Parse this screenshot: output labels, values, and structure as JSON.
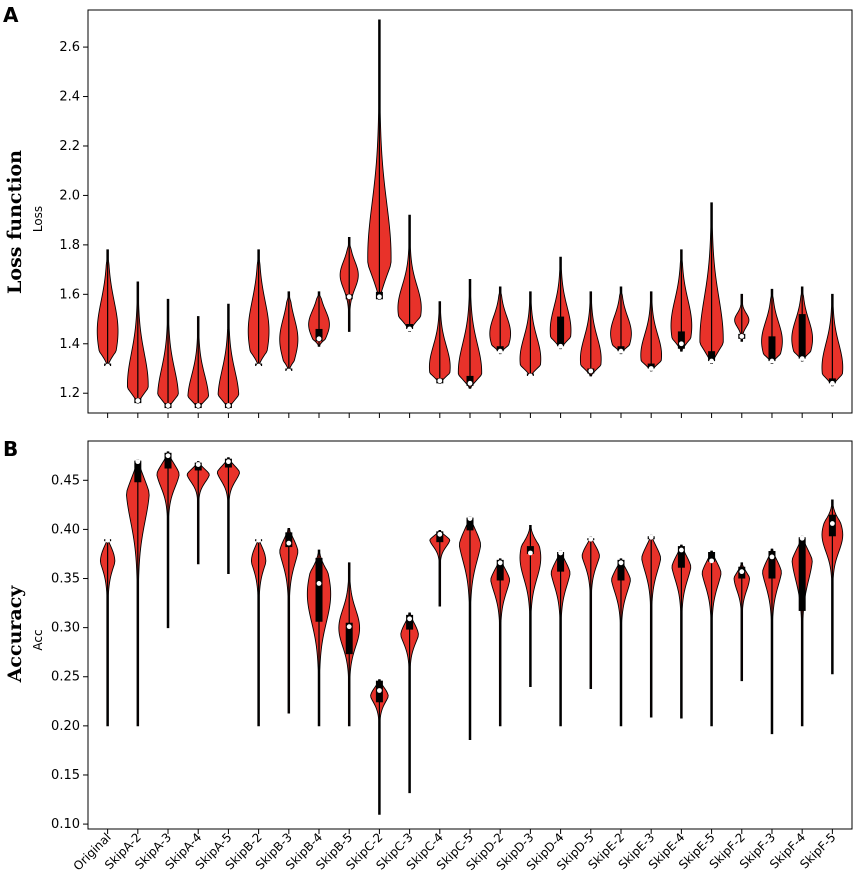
{
  "categories": [
    "Original",
    "SkipA-2",
    "SkipA-3",
    "SkipA-4",
    "SkipA-5",
    "SkipB-2",
    "SkipB-3",
    "SkipB-4",
    "SkipB-5",
    "SkipC-2",
    "SkipC-3",
    "SkipC-4",
    "SkipC-5",
    "SkipD-2",
    "SkipD-3",
    "SkipD-4",
    "SkipD-5",
    "SkipE-2",
    "SkipE-3",
    "SkipE-4",
    "SkipE-5",
    "SkipF-2",
    "SkipF-3",
    "SkipF-4",
    "SkipF-5"
  ],
  "colors": {
    "violin_fill": "#e8322a",
    "violin_edge": "#000000",
    "median": "#ffffff",
    "box": "#000000"
  },
  "chart_data": [
    {
      "type": "violin",
      "panel_letter": "A",
      "title": "Loss function",
      "ylabel": "Loss",
      "ylim": [
        1.12,
        2.75
      ],
      "yticks": [
        1.2,
        1.4,
        1.6,
        1.8,
        2.0,
        2.2,
        2.4,
        2.6
      ],
      "ytick_labels": [
        "1.2",
        "1.4",
        "1.6",
        "1.8",
        "2.0",
        "2.2",
        "2.4",
        "2.6"
      ],
      "series": [
        {
          "min": 1.31,
          "max": 1.78,
          "q1": 1.31,
          "median": 1.31,
          "q3": 1.32,
          "widthScale": 0.8,
          "peak": 0.3,
          "spread": 0.8
        },
        {
          "min": 1.16,
          "max": 1.65,
          "q1": 1.16,
          "median": 1.17,
          "q3": 1.18,
          "widthScale": 0.8,
          "peak": 0.15,
          "spread": 0.8
        },
        {
          "min": 1.14,
          "max": 1.58,
          "q1": 1.14,
          "median": 1.15,
          "q3": 1.16,
          "widthScale": 0.8,
          "peak": 0.1,
          "spread": 0.8
        },
        {
          "min": 1.14,
          "max": 1.51,
          "q1": 1.14,
          "median": 1.15,
          "q3": 1.16,
          "widthScale": 0.8,
          "peak": 0.1,
          "spread": 0.8
        },
        {
          "min": 1.14,
          "max": 1.56,
          "q1": 1.14,
          "median": 1.15,
          "q3": 1.16,
          "widthScale": 0.8,
          "peak": 0.1,
          "spread": 0.8
        },
        {
          "min": 1.31,
          "max": 1.78,
          "q1": 1.31,
          "median": 1.31,
          "q3": 1.32,
          "widthScale": 0.8,
          "peak": 0.3,
          "spread": 0.8
        },
        {
          "min": 1.29,
          "max": 1.61,
          "q1": 1.29,
          "median": 1.29,
          "q3": 1.3,
          "widthScale": 0.7,
          "peak": 0.4,
          "spread": 0.8
        },
        {
          "min": 1.39,
          "max": 1.61,
          "q1": 1.41,
          "median": 1.42,
          "q3": 1.46,
          "widthScale": 0.8,
          "peak": 0.4,
          "spread": 0.8
        },
        {
          "min": 1.45,
          "max": 1.83,
          "q1": 1.58,
          "median": 1.59,
          "q3": 1.6,
          "widthScale": 0.7,
          "peak": 0.6,
          "spread": 0.45
        },
        {
          "min": 1.58,
          "max": 2.71,
          "q1": 1.58,
          "median": 1.59,
          "q3": 1.61,
          "widthScale": 0.9,
          "peak": 0.15,
          "spread": 0.6
        },
        {
          "min": 1.45,
          "max": 1.92,
          "q1": 1.46,
          "median": 1.46,
          "q3": 1.48,
          "widthScale": 0.9,
          "peak": 0.2,
          "spread": 0.6
        },
        {
          "min": 1.24,
          "max": 1.57,
          "q1": 1.24,
          "median": 1.25,
          "q3": 1.26,
          "widthScale": 0.8,
          "peak": 0.2,
          "spread": 0.8
        },
        {
          "min": 1.22,
          "max": 1.66,
          "q1": 1.23,
          "median": 1.24,
          "q3": 1.27,
          "widthScale": 0.9,
          "peak": 0.15,
          "spread": 0.8
        },
        {
          "min": 1.36,
          "max": 1.63,
          "q1": 1.37,
          "median": 1.37,
          "q3": 1.39,
          "widthScale": 0.8,
          "peak": 0.3,
          "spread": 0.8
        },
        {
          "min": 1.27,
          "max": 1.61,
          "q1": 1.27,
          "median": 1.27,
          "q3": 1.28,
          "widthScale": 0.8,
          "peak": 0.2,
          "spread": 0.8
        },
        {
          "min": 1.38,
          "max": 1.75,
          "q1": 1.39,
          "median": 1.39,
          "q3": 1.51,
          "widthScale": 0.8,
          "peak": 0.2,
          "spread": 0.8
        },
        {
          "min": 1.27,
          "max": 1.61,
          "q1": 1.28,
          "median": 1.29,
          "q3": 1.3,
          "widthScale": 0.8,
          "peak": 0.2,
          "spread": 0.8
        },
        {
          "min": 1.36,
          "max": 1.63,
          "q1": 1.37,
          "median": 1.37,
          "q3": 1.39,
          "widthScale": 0.8,
          "peak": 0.3,
          "spread": 0.8
        },
        {
          "min": 1.29,
          "max": 1.61,
          "q1": 1.3,
          "median": 1.3,
          "q3": 1.32,
          "widthScale": 0.8,
          "peak": 0.2,
          "spread": 0.8
        },
        {
          "min": 1.37,
          "max": 1.78,
          "q1": 1.38,
          "median": 1.4,
          "q3": 1.45,
          "widthScale": 0.8,
          "peak": 0.25,
          "spread": 0.8
        },
        {
          "min": 1.32,
          "max": 1.97,
          "q1": 1.33,
          "median": 1.33,
          "q3": 1.37,
          "widthScale": 0.9,
          "peak": 0.15,
          "spread": 0.8
        },
        {
          "min": 1.41,
          "max": 1.6,
          "q1": 1.42,
          "median": 1.43,
          "q3": 1.44,
          "widthScale": 0.55,
          "peak": 0.45,
          "spread": 0.45
        },
        {
          "min": 1.32,
          "max": 1.62,
          "q1": 1.33,
          "median": 1.33,
          "q3": 1.43,
          "widthScale": 0.8,
          "peak": 0.3,
          "spread": 0.8
        },
        {
          "min": 1.33,
          "max": 1.63,
          "q1": 1.34,
          "median": 1.34,
          "q3": 1.52,
          "widthScale": 0.8,
          "peak": 0.3,
          "spread": 0.8
        },
        {
          "min": 1.23,
          "max": 1.6,
          "q1": 1.24,
          "median": 1.24,
          "q3": 1.26,
          "widthScale": 0.8,
          "peak": 0.2,
          "spread": 0.8
        }
      ]
    },
    {
      "type": "violin",
      "panel_letter": "B",
      "title": "Accuracy",
      "ylabel": "Acc",
      "ylim": [
        0.095,
        0.49
      ],
      "yticks": [
        0.1,
        0.15,
        0.2,
        0.25,
        0.3,
        0.35,
        0.4,
        0.45
      ],
      "ytick_labels": [
        "0.10",
        "0.15",
        "0.20",
        "0.25",
        "0.30",
        "0.35",
        "0.40",
        "0.45"
      ],
      "series": [
        {
          "min": 0.2,
          "max": 0.39,
          "q1": 0.388,
          "median": 0.389,
          "q3": 0.39,
          "widthScale": 0.8,
          "peak": 0.96,
          "spread": 0.3
        },
        {
          "min": 0.2,
          "max": 0.471,
          "q1": 0.448,
          "median": 0.469,
          "q3": 0.47,
          "widthScale": 0.9,
          "peak": 0.9,
          "spread": 0.4
        },
        {
          "min": 0.3,
          "max": 0.479,
          "q1": 0.462,
          "median": 0.475,
          "q3": 0.478,
          "widthScale": 0.9,
          "peak": 0.9,
          "spread": 0.3
        },
        {
          "min": 0.365,
          "max": 0.469,
          "q1": 0.46,
          "median": 0.466,
          "q3": 0.468,
          "widthScale": 0.9,
          "peak": 0.9,
          "spread": 0.3
        },
        {
          "min": 0.355,
          "max": 0.473,
          "q1": 0.463,
          "median": 0.469,
          "q3": 0.472,
          "widthScale": 0.9,
          "peak": 0.9,
          "spread": 0.3
        },
        {
          "min": 0.2,
          "max": 0.39,
          "q1": 0.388,
          "median": 0.389,
          "q3": 0.39,
          "widthScale": 0.8,
          "peak": 0.96,
          "spread": 0.3
        },
        {
          "min": 0.213,
          "max": 0.401,
          "q1": 0.382,
          "median": 0.386,
          "q3": 0.397,
          "widthScale": 0.8,
          "peak": 0.93,
          "spread": 0.35
        },
        {
          "min": 0.2,
          "max": 0.379,
          "q1": 0.306,
          "median": 0.345,
          "q3": 0.371,
          "widthScale": 0.9,
          "peak": 0.75,
          "spread": 0.5
        },
        {
          "min": 0.2,
          "max": 0.366,
          "q1": 0.273,
          "median": 0.301,
          "q3": 0.305,
          "widthScale": 0.8,
          "peak": 0.6,
          "spread": 0.35
        },
        {
          "min": 0.11,
          "max": 0.247,
          "q1": 0.224,
          "median": 0.236,
          "q3": 0.246,
          "widthScale": 0.8,
          "peak": 0.92,
          "spread": 0.25
        },
        {
          "min": 0.132,
          "max": 0.315,
          "q1": 0.298,
          "median": 0.309,
          "q3": 0.313,
          "widthScale": 0.8,
          "peak": 0.92,
          "spread": 0.25
        },
        {
          "min": 0.322,
          "max": 0.399,
          "q1": 0.387,
          "median": 0.395,
          "q3": 0.398,
          "widthScale": 0.8,
          "peak": 0.9,
          "spread": 0.35
        },
        {
          "min": 0.186,
          "max": 0.413,
          "q1": 0.399,
          "median": 0.411,
          "q3": 0.412,
          "widthScale": 0.9,
          "peak": 0.92,
          "spread": 0.35
        },
        {
          "min": 0.2,
          "max": 0.37,
          "q1": 0.348,
          "median": 0.366,
          "q3": 0.369,
          "widthScale": 0.8,
          "peak": 0.92,
          "spread": 0.35
        },
        {
          "min": 0.24,
          "max": 0.404,
          "q1": 0.375,
          "median": 0.376,
          "q3": 0.383,
          "widthScale": 0.8,
          "peak": 0.8,
          "spread": 0.4
        },
        {
          "min": 0.2,
          "max": 0.378,
          "q1": 0.357,
          "median": 0.376,
          "q3": 0.377,
          "widthScale": 0.8,
          "peak": 0.92,
          "spread": 0.35
        },
        {
          "min": 0.238,
          "max": 0.392,
          "q1": 0.389,
          "median": 0.39,
          "q3": 0.391,
          "widthScale": 0.8,
          "peak": 0.94,
          "spread": 0.35
        },
        {
          "min": 0.2,
          "max": 0.37,
          "q1": 0.348,
          "median": 0.366,
          "q3": 0.369,
          "widthScale": 0.8,
          "peak": 0.92,
          "spread": 0.35
        },
        {
          "min": 0.209,
          "max": 0.394,
          "q1": 0.39,
          "median": 0.392,
          "q3": 0.393,
          "widthScale": 0.8,
          "peak": 0.92,
          "spread": 0.35
        },
        {
          "min": 0.208,
          "max": 0.384,
          "q1": 0.361,
          "median": 0.379,
          "q3": 0.383,
          "widthScale": 0.8,
          "peak": 0.92,
          "spread": 0.35
        },
        {
          "min": 0.2,
          "max": 0.378,
          "q1": 0.367,
          "median": 0.368,
          "q3": 0.377,
          "widthScale": 0.8,
          "peak": 0.92,
          "spread": 0.35
        },
        {
          "min": 0.246,
          "max": 0.366,
          "q1": 0.35,
          "median": 0.357,
          "q3": 0.362,
          "widthScale": 0.6,
          "peak": 0.88,
          "spread": 0.35
        },
        {
          "min": 0.192,
          "max": 0.38,
          "q1": 0.35,
          "median": 0.372,
          "q3": 0.378,
          "widthScale": 0.8,
          "peak": 0.92,
          "spread": 0.35
        },
        {
          "min": 0.2,
          "max": 0.393,
          "q1": 0.317,
          "median": 0.391,
          "q3": 0.392,
          "widthScale": 0.8,
          "peak": 0.9,
          "spread": 0.4
        },
        {
          "min": 0.253,
          "max": 0.43,
          "q1": 0.393,
          "median": 0.406,
          "q3": 0.415,
          "widthScale": 0.8,
          "peak": 0.8,
          "spread": 0.3
        }
      ]
    }
  ]
}
